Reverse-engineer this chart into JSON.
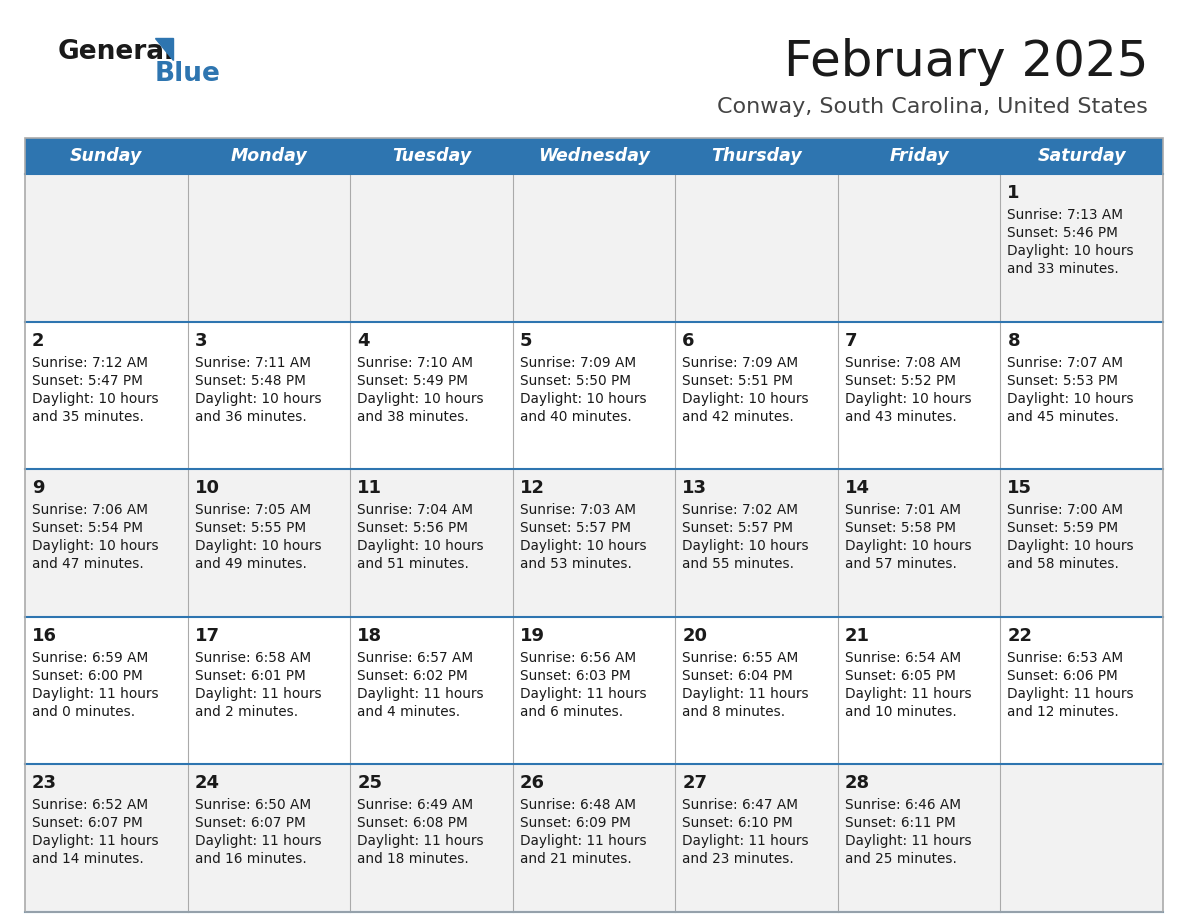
{
  "title": "February 2025",
  "subtitle": "Conway, South Carolina, United States",
  "header_bg": "#2e75b0",
  "header_text_color": "#ffffff",
  "cell_bg_light": "#f2f2f2",
  "cell_bg_white": "#ffffff",
  "separator_color": "#2e75b0",
  "grid_color": "#aaaaaa",
  "days_of_week": [
    "Sunday",
    "Monday",
    "Tuesday",
    "Wednesday",
    "Thursday",
    "Friday",
    "Saturday"
  ],
  "logo_color1": "#1a1a1a",
  "logo_color2": "#2e75b0",
  "title_color": "#1a1a1a",
  "subtitle_color": "#444444",
  "cell_text_color": "#1a1a1a",
  "weeks": [
    [
      {
        "day": null,
        "sunrise": null,
        "sunset": null,
        "daylight": null
      },
      {
        "day": null,
        "sunrise": null,
        "sunset": null,
        "daylight": null
      },
      {
        "day": null,
        "sunrise": null,
        "sunset": null,
        "daylight": null
      },
      {
        "day": null,
        "sunrise": null,
        "sunset": null,
        "daylight": null
      },
      {
        "day": null,
        "sunrise": null,
        "sunset": null,
        "daylight": null
      },
      {
        "day": null,
        "sunrise": null,
        "sunset": null,
        "daylight": null
      },
      {
        "day": 1,
        "sunrise": "7:13 AM",
        "sunset": "5:46 PM",
        "daylight": "10 hours\nand 33 minutes."
      }
    ],
    [
      {
        "day": 2,
        "sunrise": "7:12 AM",
        "sunset": "5:47 PM",
        "daylight": "10 hours\nand 35 minutes."
      },
      {
        "day": 3,
        "sunrise": "7:11 AM",
        "sunset": "5:48 PM",
        "daylight": "10 hours\nand 36 minutes."
      },
      {
        "day": 4,
        "sunrise": "7:10 AM",
        "sunset": "5:49 PM",
        "daylight": "10 hours\nand 38 minutes."
      },
      {
        "day": 5,
        "sunrise": "7:09 AM",
        "sunset": "5:50 PM",
        "daylight": "10 hours\nand 40 minutes."
      },
      {
        "day": 6,
        "sunrise": "7:09 AM",
        "sunset": "5:51 PM",
        "daylight": "10 hours\nand 42 minutes."
      },
      {
        "day": 7,
        "sunrise": "7:08 AM",
        "sunset": "5:52 PM",
        "daylight": "10 hours\nand 43 minutes."
      },
      {
        "day": 8,
        "sunrise": "7:07 AM",
        "sunset": "5:53 PM",
        "daylight": "10 hours\nand 45 minutes."
      }
    ],
    [
      {
        "day": 9,
        "sunrise": "7:06 AM",
        "sunset": "5:54 PM",
        "daylight": "10 hours\nand 47 minutes."
      },
      {
        "day": 10,
        "sunrise": "7:05 AM",
        "sunset": "5:55 PM",
        "daylight": "10 hours\nand 49 minutes."
      },
      {
        "day": 11,
        "sunrise": "7:04 AM",
        "sunset": "5:56 PM",
        "daylight": "10 hours\nand 51 minutes."
      },
      {
        "day": 12,
        "sunrise": "7:03 AM",
        "sunset": "5:57 PM",
        "daylight": "10 hours\nand 53 minutes."
      },
      {
        "day": 13,
        "sunrise": "7:02 AM",
        "sunset": "5:57 PM",
        "daylight": "10 hours\nand 55 minutes."
      },
      {
        "day": 14,
        "sunrise": "7:01 AM",
        "sunset": "5:58 PM",
        "daylight": "10 hours\nand 57 minutes."
      },
      {
        "day": 15,
        "sunrise": "7:00 AM",
        "sunset": "5:59 PM",
        "daylight": "10 hours\nand 58 minutes."
      }
    ],
    [
      {
        "day": 16,
        "sunrise": "6:59 AM",
        "sunset": "6:00 PM",
        "daylight": "11 hours\nand 0 minutes."
      },
      {
        "day": 17,
        "sunrise": "6:58 AM",
        "sunset": "6:01 PM",
        "daylight": "11 hours\nand 2 minutes."
      },
      {
        "day": 18,
        "sunrise": "6:57 AM",
        "sunset": "6:02 PM",
        "daylight": "11 hours\nand 4 minutes."
      },
      {
        "day": 19,
        "sunrise": "6:56 AM",
        "sunset": "6:03 PM",
        "daylight": "11 hours\nand 6 minutes."
      },
      {
        "day": 20,
        "sunrise": "6:55 AM",
        "sunset": "6:04 PM",
        "daylight": "11 hours\nand 8 minutes."
      },
      {
        "day": 21,
        "sunrise": "6:54 AM",
        "sunset": "6:05 PM",
        "daylight": "11 hours\nand 10 minutes."
      },
      {
        "day": 22,
        "sunrise": "6:53 AM",
        "sunset": "6:06 PM",
        "daylight": "11 hours\nand 12 minutes."
      }
    ],
    [
      {
        "day": 23,
        "sunrise": "6:52 AM",
        "sunset": "6:07 PM",
        "daylight": "11 hours\nand 14 minutes."
      },
      {
        "day": 24,
        "sunrise": "6:50 AM",
        "sunset": "6:07 PM",
        "daylight": "11 hours\nand 16 minutes."
      },
      {
        "day": 25,
        "sunrise": "6:49 AM",
        "sunset": "6:08 PM",
        "daylight": "11 hours\nand 18 minutes."
      },
      {
        "day": 26,
        "sunrise": "6:48 AM",
        "sunset": "6:09 PM",
        "daylight": "11 hours\nand 21 minutes."
      },
      {
        "day": 27,
        "sunrise": "6:47 AM",
        "sunset": "6:10 PM",
        "daylight": "11 hours\nand 23 minutes."
      },
      {
        "day": 28,
        "sunrise": "6:46 AM",
        "sunset": "6:11 PM",
        "daylight": "11 hours\nand 25 minutes."
      },
      {
        "day": null,
        "sunrise": null,
        "sunset": null,
        "daylight": null
      }
    ]
  ]
}
